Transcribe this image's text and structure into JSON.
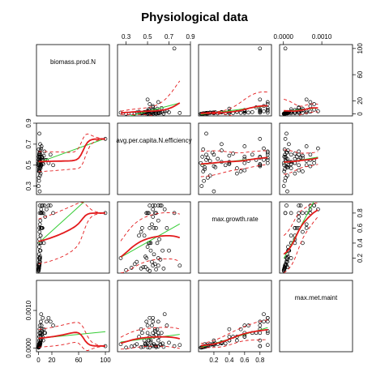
{
  "chart_data": {
    "type": "scatter",
    "title": "Physiological data",
    "variables": [
      "biomass.prod.N",
      "avg.per.capita.N.efficiency",
      "max.growth.rate",
      "max.met.maint"
    ],
    "ranges": {
      "biomass.prod.N": [
        -3,
        106
      ],
      "avg.per.capita.N.efficiency": [
        0.22,
        0.9
      ],
      "max.growth.rate": [
        0,
        0.95
      ],
      "max.met.maint": [
        -0.0001,
        0.0018
      ]
    },
    "ticks": {
      "biomass.prod.N": {
        "values": [
          0,
          20,
          60,
          100
        ],
        "labels": [
          "0",
          "20",
          "60",
          "100"
        ]
      },
      "avg.per.capita.N.efficiency": {
        "values": [
          0.3,
          0.5,
          0.7,
          0.9
        ],
        "labels": [
          "0.3",
          "0.5",
          "0.7",
          "0.9"
        ]
      },
      "max.growth.rate": {
        "values": [
          0.2,
          0.4,
          0.6,
          0.8
        ],
        "labels": [
          "0.2",
          "0.4",
          "0.6",
          "0.8"
        ]
      },
      "max.met.maint": {
        "values": [
          0,
          0.001
        ],
        "labels": [
          "0.0000",
          "0.0010"
        ]
      }
    },
    "points": {
      "biomass.prod.N": [
        0.3,
        0.5,
        0.8,
        1,
        1.2,
        1.5,
        1.8,
        2,
        2.2,
        2.5,
        3,
        0.4,
        0.6,
        0.9,
        1.1,
        1.3,
        1.6,
        2.1,
        2.8,
        3.5,
        4,
        5,
        6,
        7,
        8,
        9,
        10,
        0.2,
        0.7,
        1.4,
        1.9,
        2.4,
        3.2,
        4.5,
        5.5,
        12,
        15,
        18,
        22,
        0.5,
        1,
        1.5,
        2,
        2.5,
        3,
        3.5,
        4.2,
        6.5,
        0.3,
        0.8,
        1.2,
        1.7,
        2.3,
        2.9,
        3.8,
        5.2,
        100
      ],
      "avg.per.capita.N.efficiency": [
        0.5,
        0.55,
        0.48,
        0.6,
        0.52,
        0.45,
        0.58,
        0.62,
        0.4,
        0.53,
        0.47,
        0.65,
        0.38,
        0.56,
        0.5,
        0.61,
        0.44,
        0.54,
        0.6,
        0.49,
        0.66,
        0.57,
        0.52,
        0.51,
        0.59,
        0.63,
        0.55,
        0.3,
        0.35,
        0.8,
        0.25,
        0.7,
        0.42,
        0.68,
        0.57,
        0.55,
        0.52,
        0.6,
        0.5,
        0.58,
        0.46,
        0.54,
        0.62,
        0.48,
        0.53,
        0.56,
        0.5,
        0.55,
        0.52,
        0.44,
        0.6,
        0.57,
        0.49,
        0.64,
        0.51,
        0.58,
        0.75
      ],
      "max.growth.rate": [
        0.05,
        0.1,
        0.08,
        0.2,
        0.4,
        0.6,
        0.8,
        0.9,
        0.15,
        0.3,
        0.5,
        0.06,
        0.12,
        0.25,
        0.35,
        0.45,
        0.55,
        0.65,
        0.7,
        0.8,
        0.85,
        0.9,
        0.6,
        0.8,
        0.4,
        0.9,
        0.75,
        0.04,
        0.07,
        0.1,
        0.2,
        0.3,
        0.5,
        0.6,
        0.8,
        0.85,
        0.9,
        0.9,
        0.8,
        0.05,
        0.08,
        0.15,
        0.18,
        0.22,
        0.4,
        0.6,
        0.8,
        0.9,
        0.03,
        0.06,
        0.1,
        0.12,
        0.2,
        0.3,
        0.4,
        0.6,
        0.8
      ],
      "max.met.maint": [
        2e-05,
        5e-05,
        0.0001,
        0.0002,
        0.0003,
        0.0004,
        5e-05,
        8e-05,
        0.0001,
        0.00015,
        0.0002,
        3e-05,
        6e-05,
        0.0001,
        0.00012,
        0.0003,
        0.0005,
        0.0006,
        0.0004,
        0.0007,
        0.0009,
        0.00045,
        0.0003,
        0.0002,
        0.0005,
        0.0004,
        0.0004,
        1e-05,
        4e-05,
        8e-05,
        0.0001,
        0.00014,
        0.0003,
        0.0006,
        0.0005,
        0.0007,
        0.0008,
        0.0007,
        0.0006,
        2e-05,
        3e-05,
        7e-05,
        0.0001,
        0.00012,
        0.0002,
        0.0003,
        0.0004,
        0.0008,
        1e-05,
        2e-05,
        4e-05,
        6e-05,
        8e-05,
        0.00012,
        0.0002,
        0.00035,
        5e-05
      ]
    }
  }
}
